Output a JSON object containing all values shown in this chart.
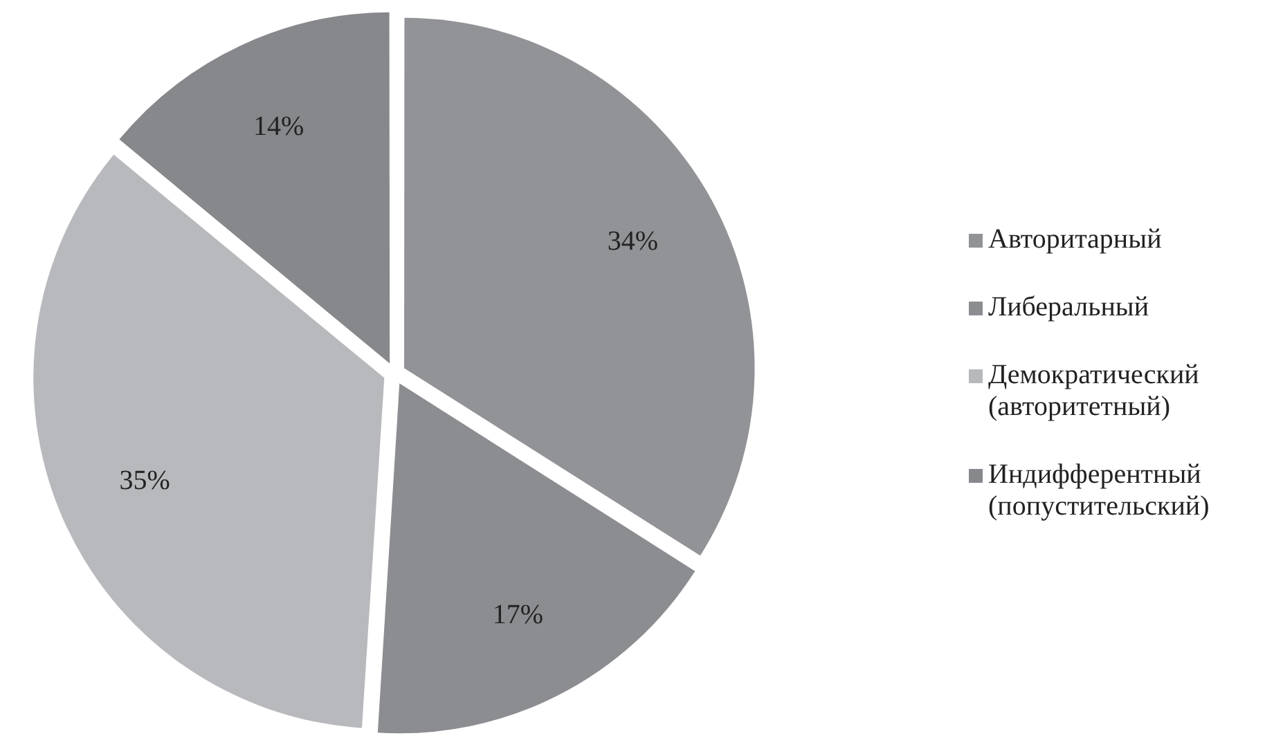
{
  "chart_data": {
    "type": "pie",
    "categories": [
      "Авторитарный",
      "Либеральный",
      "Демократический (авторитетный)",
      "Индифферентный (попустительский)"
    ],
    "values": [
      34,
      17,
      35,
      14
    ],
    "colors": [
      "#929397",
      "#8c8d91",
      "#b8b9bd",
      "#87888c"
    ],
    "value_labels": [
      "34%",
      "17%",
      "35%",
      "14%"
    ],
    "legend": "right"
  }
}
